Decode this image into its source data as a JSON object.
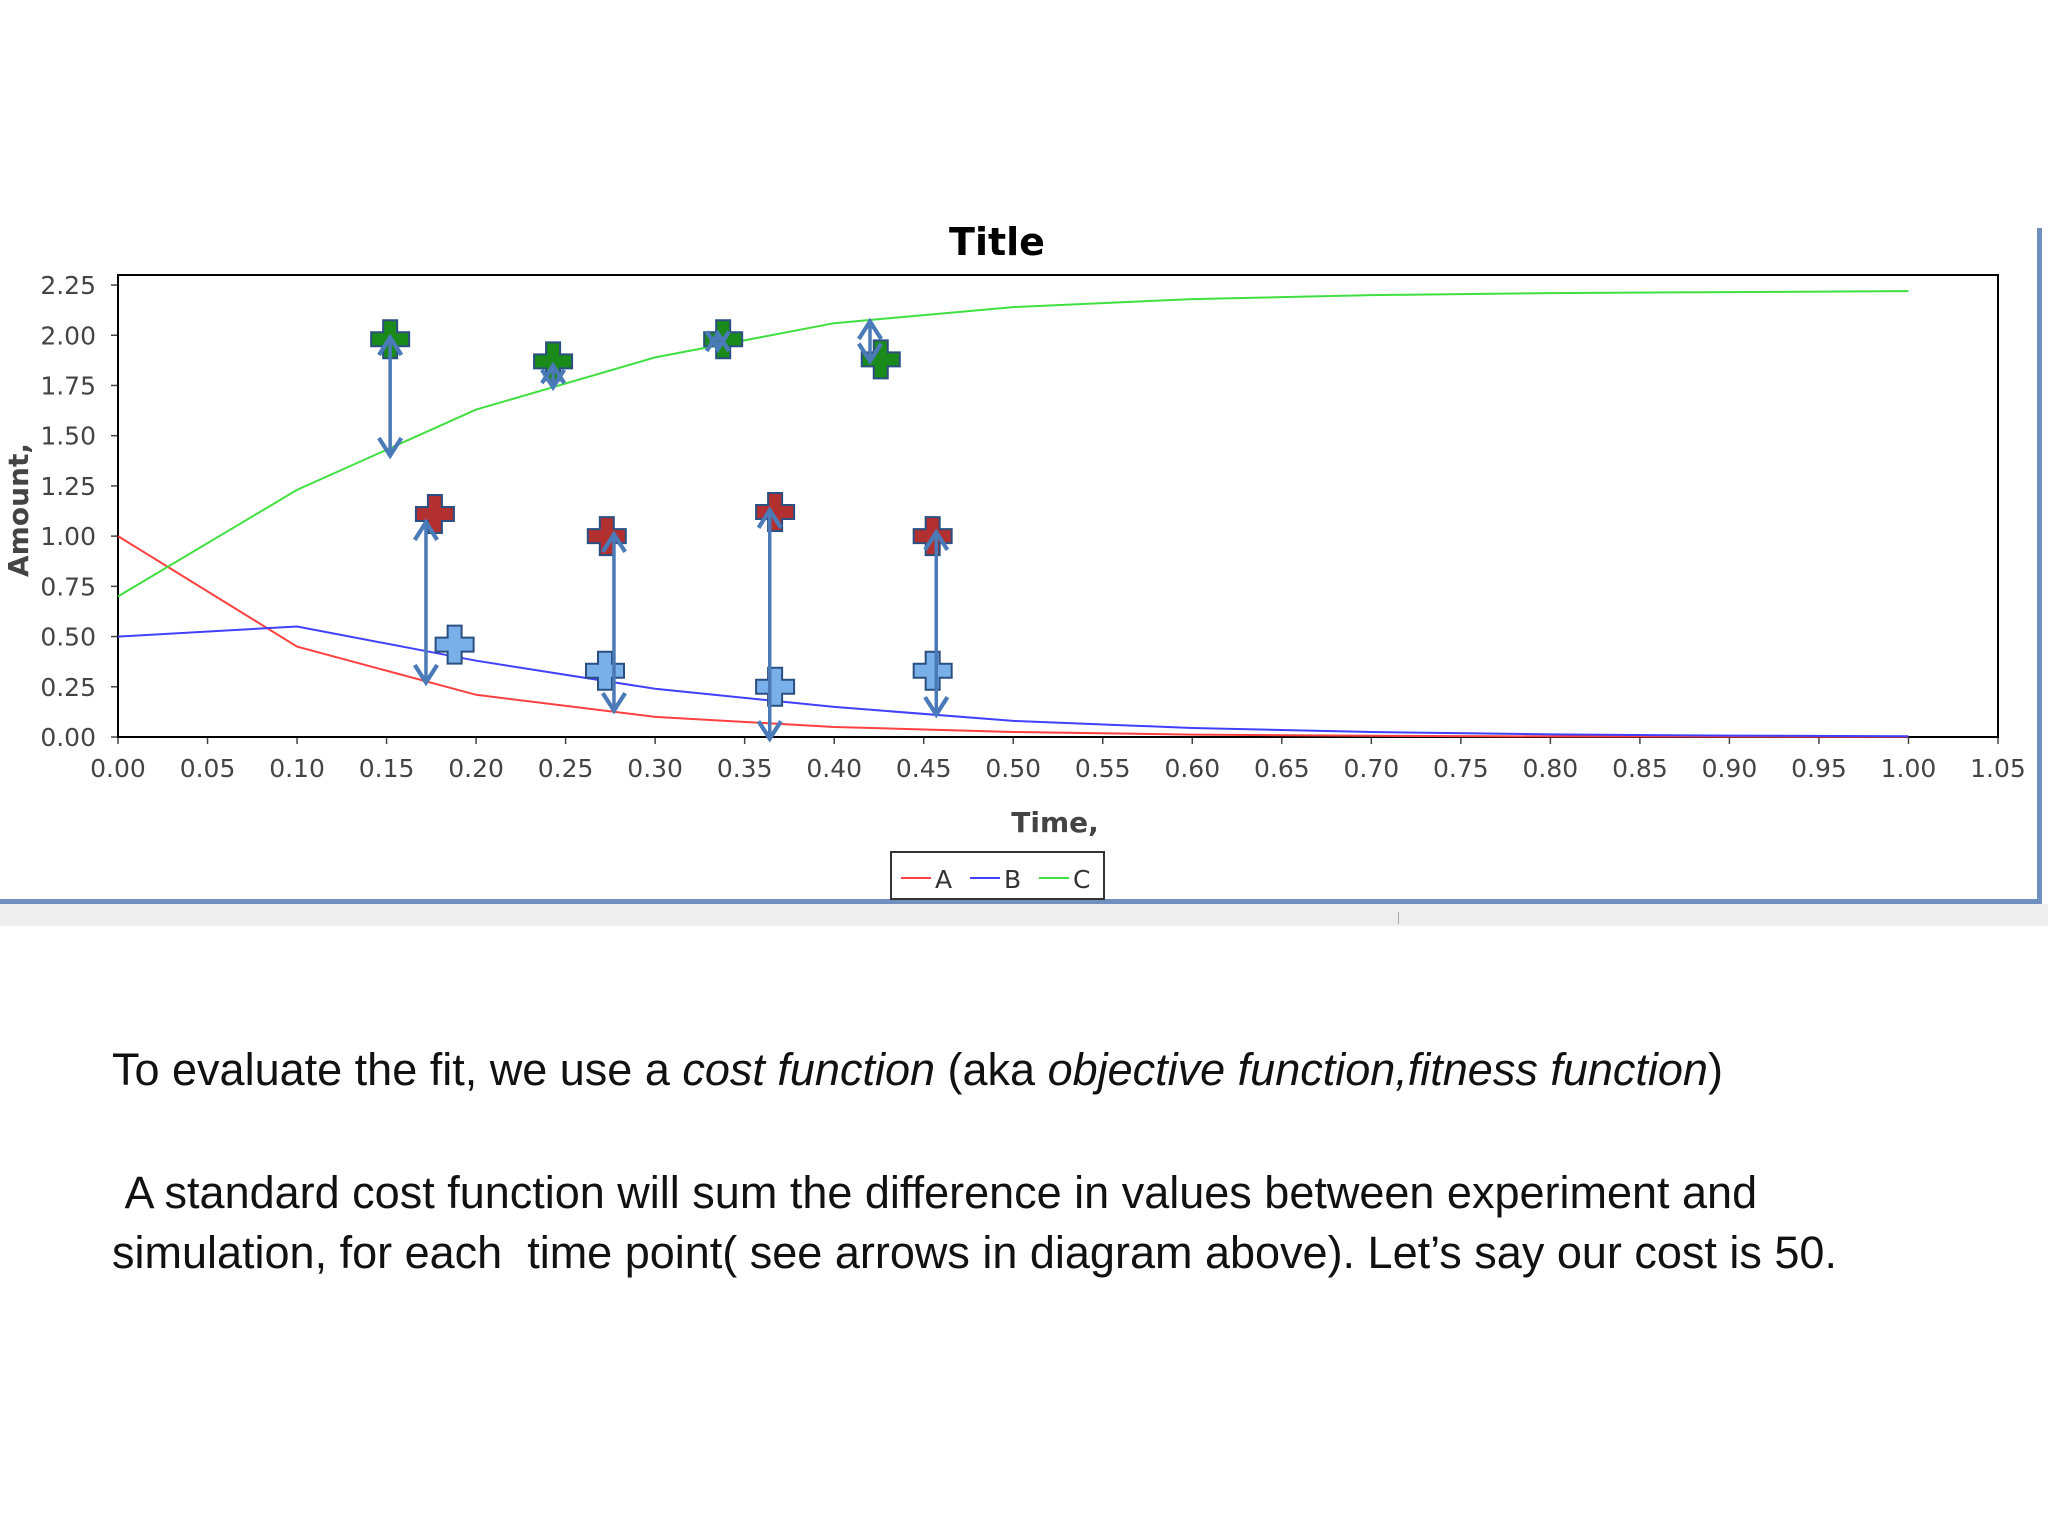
{
  "chart_data": {
    "type": "line",
    "title": "Title",
    "xlabel": "Time,",
    "ylabel": "Amount,",
    "xlim": [
      0,
      1.05
    ],
    "ylim": [
      0,
      2.3
    ],
    "x_ticks": [
      "0.00",
      "0.05",
      "0.10",
      "0.15",
      "0.20",
      "0.25",
      "0.30",
      "0.35",
      "0.40",
      "0.45",
      "0.50",
      "0.55",
      "0.60",
      "0.65",
      "0.70",
      "0.75",
      "0.80",
      "0.85",
      "0.90",
      "0.95",
      "1.00",
      "1.05"
    ],
    "y_ticks": [
      "0.00",
      "0.25",
      "0.50",
      "0.75",
      "1.00",
      "1.25",
      "1.50",
      "1.75",
      "2.00",
      "2.25"
    ],
    "grid": false,
    "legend": "bottom-center",
    "x": [
      0.0,
      0.1,
      0.2,
      0.3,
      0.4,
      0.5,
      0.6,
      0.7,
      0.8,
      0.9,
      1.0
    ],
    "series": [
      {
        "name": "A",
        "color": "#ff4040",
        "values": [
          1.0,
          0.45,
          0.21,
          0.1,
          0.05,
          0.025,
          0.012,
          0.006,
          0.003,
          0.002,
          0.001
        ]
      },
      {
        "name": "B",
        "color": "#4040ff",
        "values": [
          0.5,
          0.55,
          0.38,
          0.24,
          0.15,
          0.08,
          0.045,
          0.025,
          0.013,
          0.007,
          0.004
        ]
      },
      {
        "name": "C",
        "color": "#40e040",
        "values": [
          0.7,
          1.23,
          1.63,
          1.89,
          2.06,
          2.14,
          2.18,
          2.2,
          2.21,
          2.215,
          2.22
        ]
      }
    ],
    "experimental_points": [
      {
        "series": "C",
        "color": "#1a8a1a",
        "points": [
          [
            0.152,
            1.98
          ],
          [
            0.243,
            1.87
          ],
          [
            0.338,
            1.98
          ],
          [
            0.426,
            1.88
          ]
        ]
      },
      {
        "series": "A",
        "color": "#b23030",
        "points": [
          [
            0.177,
            1.11
          ],
          [
            0.273,
            1.0
          ],
          [
            0.367,
            1.12
          ],
          [
            0.455,
            1.0
          ]
        ]
      },
      {
        "series": "B",
        "color": "#7ab0ea",
        "points": [
          [
            0.188,
            0.46
          ],
          [
            0.272,
            0.33
          ],
          [
            0.367,
            0.25
          ],
          [
            0.455,
            0.33
          ]
        ]
      }
    ],
    "difference_arrows": [
      [
        0.152,
        1.98,
        0.152,
        1.41
      ],
      [
        0.243,
        1.84,
        0.243,
        1.75
      ],
      [
        0.335,
        1.94,
        0.335,
        2.0
      ],
      [
        0.42,
        1.88,
        0.42,
        2.06
      ],
      [
        0.172,
        1.06,
        0.172,
        0.28
      ],
      [
        0.277,
        1.0,
        0.277,
        0.14
      ],
      [
        0.364,
        1.12,
        0.364,
        0.0
      ],
      [
        0.457,
        1.01,
        0.457,
        0.12
      ]
    ]
  },
  "text": {
    "p1_a": "To evaluate the fit, we use a ",
    "p1_b": "cost function",
    "p1_c": " (aka ",
    "p1_d": "objective function,fitness function",
    "p1_e": ")",
    "p2": " A standard cost function will sum the difference in values between experiment and simulation, for each  time point( see arrows in diagram above). Let’s say our cost is 50."
  },
  "colors": {
    "panel_border": "#6f8fbf",
    "arrow": "#4a7ab8"
  }
}
